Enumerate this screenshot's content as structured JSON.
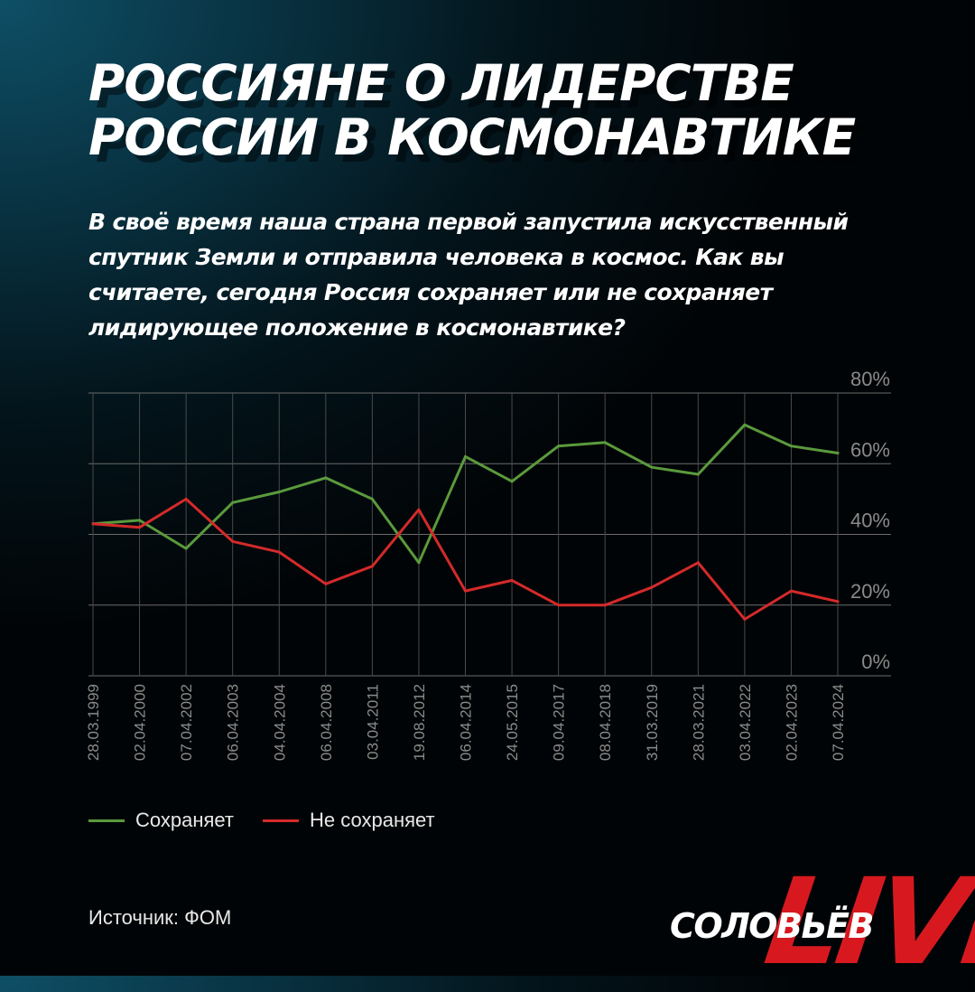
{
  "header": {
    "title_line1": "РОССИЯНЕ О ЛИДЕРСТВЕ",
    "title_line2": "РОССИИ В КОСМОНАВТИКЕ"
  },
  "question": {
    "line1": "В своё время наша страна первой запустила искусственный",
    "line2": "спутник Земли и отправила человека в космос. Как вы",
    "line3": "считаете, сегодня Россия сохраняет или не сохраняет",
    "line4": "лидирующее положение в космонавтике?"
  },
  "chart_data": {
    "type": "line",
    "x": [
      "28.03.1999",
      "02.04.2000",
      "07.04.2002",
      "06.04.2003",
      "04.04.2004",
      "06.04.2008",
      "03.04.2011",
      "19.08.2012",
      "06.04.2014",
      "24.05.2015",
      "09.04.2017",
      "08.04.2018",
      "31.03.2019",
      "28.03.2021",
      "03.04.2022",
      "02.04.2023",
      "07.04.2024"
    ],
    "series": [
      {
        "name": "Сохраняет",
        "color": "#5a9a3c",
        "values": [
          43,
          44,
          36,
          49,
          52,
          56,
          50,
          32,
          62,
          55,
          65,
          66,
          59,
          57,
          71,
          65,
          63
        ]
      },
      {
        "name": "Не сохраняет",
        "color": "#d42a2a",
        "values": [
          43,
          42,
          50,
          38,
          35,
          26,
          31,
          47,
          24,
          27,
          20,
          20,
          25,
          32,
          16,
          24,
          21
        ]
      }
    ],
    "ylim": [
      0,
      80
    ],
    "yticks": [
      "0%",
      "20%",
      "40%",
      "60%",
      "80%"
    ],
    "y_axis_side": "right",
    "grid": true,
    "legend_position": "bottom-left"
  },
  "legend": {
    "item1": "Сохраняет",
    "item2": "Не сохраняет"
  },
  "footer": {
    "source": "Источник: ФОМ",
    "logo_word": "СОЛОВЬЁВ",
    "logo_live": "LIVE"
  },
  "colors": {
    "green": "#5a9a3c",
    "red": "#d42a2a",
    "grid": "#6b6b6b"
  }
}
